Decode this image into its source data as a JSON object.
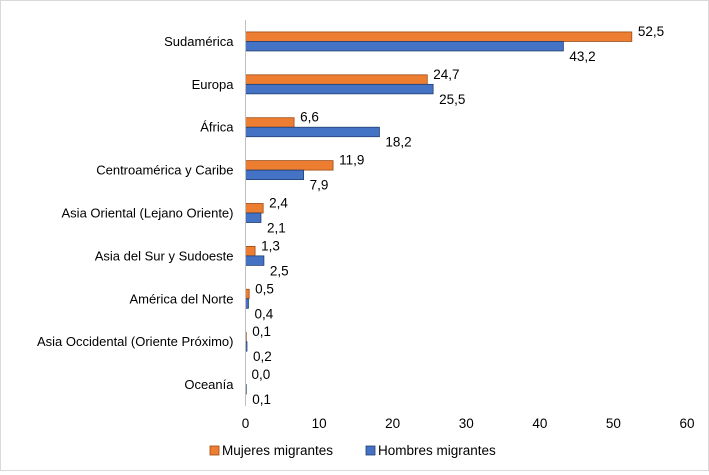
{
  "chart_data": {
    "type": "bar",
    "orientation": "horizontal",
    "categories": [
      "Sudamérica",
      "Europa",
      "África",
      "Centroamérica y Caribe",
      "Asia Oriental (Lejano Oriente)",
      "Asia del Sur y Sudoeste",
      "América del Norte",
      "Asia Occidental (Oriente Próximo)",
      "Oceanía"
    ],
    "series": [
      {
        "name": "Mujeres migrantes",
        "color": "#ED7D31",
        "values": [
          52.5,
          24.7,
          6.6,
          11.9,
          2.4,
          1.3,
          0.5,
          0.1,
          0.0
        ],
        "labels": [
          "52,5",
          "24,7",
          "6,6",
          "11,9",
          "2,4",
          "1,3",
          "0,5",
          "0,1",
          "0,0"
        ]
      },
      {
        "name": "Hombres migrantes",
        "color": "#4472C4",
        "values": [
          43.2,
          25.5,
          18.2,
          7.9,
          2.1,
          2.5,
          0.4,
          0.2,
          0.1
        ],
        "labels": [
          "43,2",
          "25,5",
          "18,2",
          "7,9",
          "2,1",
          "2,5",
          "0,4",
          "0,2",
          "0,1"
        ]
      }
    ],
    "xlim": [
      0,
      60
    ],
    "x_ticks": [
      0,
      10,
      20,
      30,
      40,
      50,
      60
    ],
    "title": "",
    "xlabel": "",
    "ylabel": "",
    "grid": false,
    "legend_position": "bottom"
  }
}
